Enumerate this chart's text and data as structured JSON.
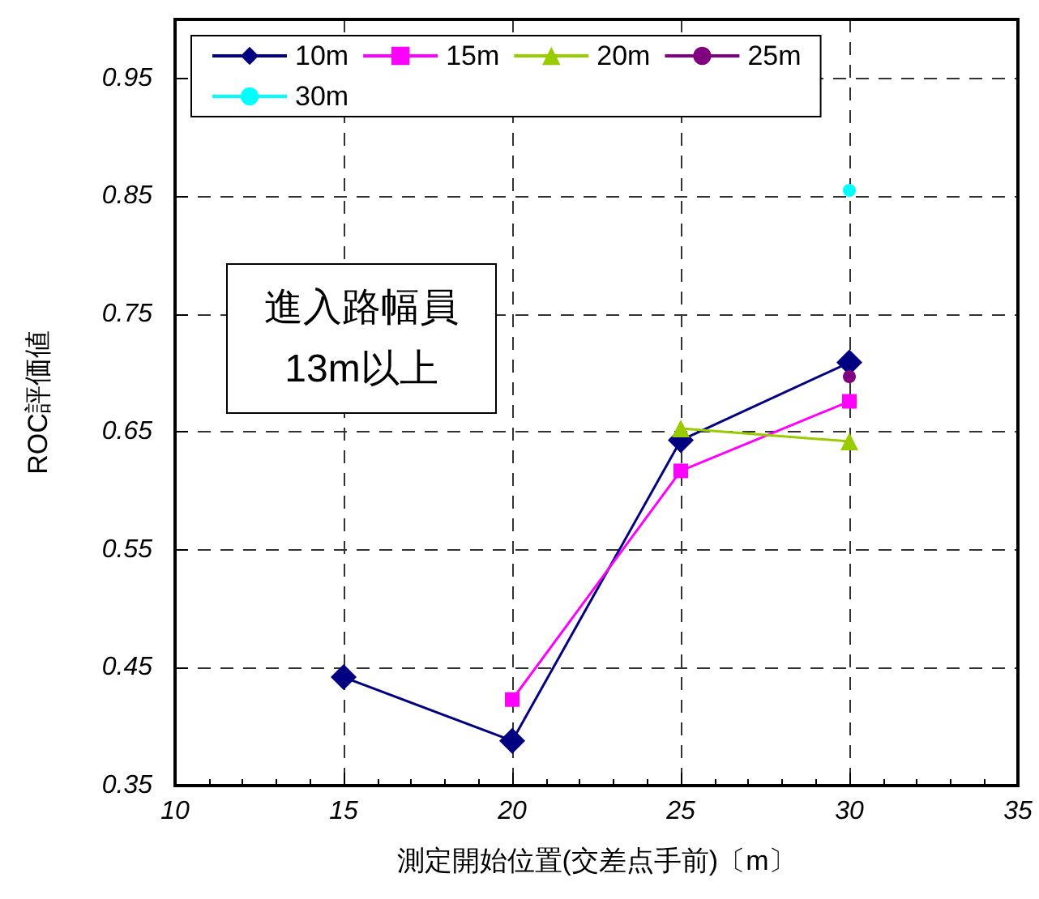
{
  "chart_data": {
    "type": "line",
    "xlabel": "測定開始位置(交差点手前)〔m〕",
    "ylabel": "ROC評価値",
    "xlim": [
      10,
      35
    ],
    "xticks": [
      10,
      15,
      20,
      25,
      30,
      35
    ],
    "ylim": [
      0.35,
      1.0
    ],
    "yticks": [
      0.35,
      0.45,
      0.55,
      0.65,
      0.75,
      0.85,
      0.95
    ],
    "grid": true,
    "legend": "top",
    "annotations": [
      "進入路幅員\n13m以上"
    ],
    "series": [
      {
        "name": "10m",
        "color": "#000080",
        "marker": "diamond",
        "x": [
          15,
          20,
          25,
          30
        ],
        "values": [
          0.442,
          0.388,
          0.643,
          0.709
        ]
      },
      {
        "name": "15m",
        "color": "#ff00ff",
        "marker": "square",
        "x": [
          20,
          25,
          30
        ],
        "values": [
          0.423,
          0.617,
          0.676
        ]
      },
      {
        "name": "20m",
        "color": "#99cc00",
        "marker": "triangle",
        "x": [
          25,
          30
        ],
        "values": [
          0.653,
          0.642
        ]
      },
      {
        "name": "25m",
        "color": "#800080",
        "marker": "circle",
        "x": [
          30
        ],
        "values": [
          0.697
        ]
      },
      {
        "name": "30m",
        "color": "#00ffff",
        "marker": "circle",
        "x": [
          30
        ],
        "values": [
          0.855
        ]
      }
    ]
  }
}
